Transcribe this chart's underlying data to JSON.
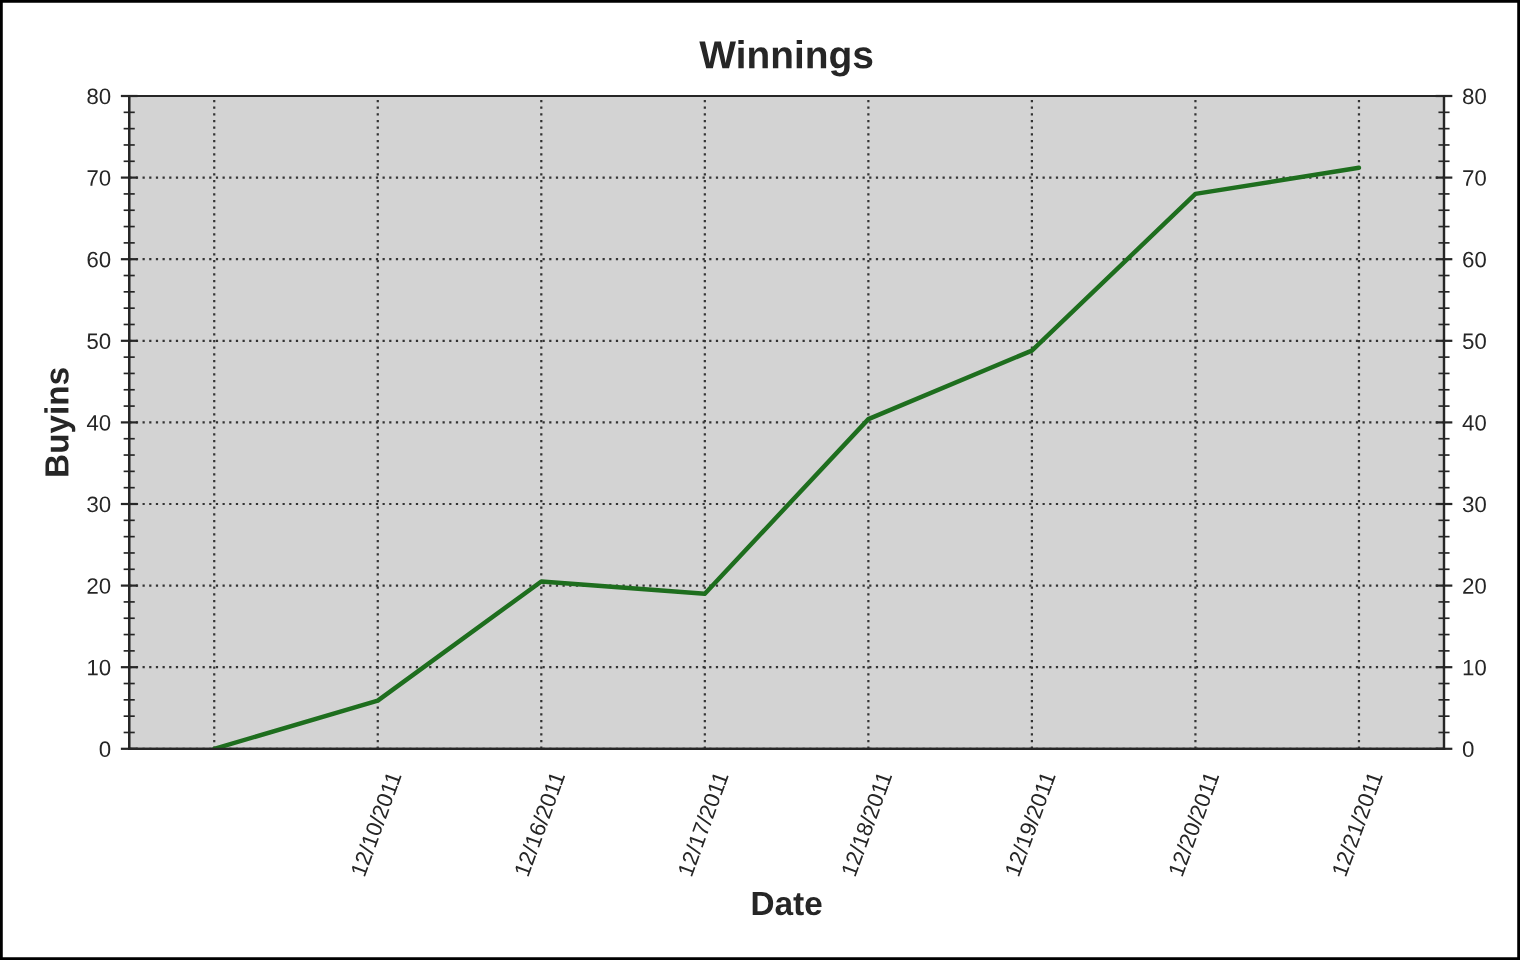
{
  "chart_data": {
    "type": "line",
    "title": "Winnings",
    "xlabel": "Date",
    "ylabel": "Buyins",
    "categories": [
      null,
      "12/10/2011",
      "12/16/2011",
      "12/17/2011",
      "12/18/2011",
      "12/19/2011",
      "12/20/2011",
      "12/21/2011"
    ],
    "series": [
      {
        "color": "#1e6e1e",
        "values": [
          0,
          5.9,
          20.5,
          19.0,
          40.4,
          48.8,
          68.0,
          71.2
        ]
      }
    ],
    "ylim": [
      0,
      80
    ],
    "yticks": [
      0,
      10,
      20,
      30,
      40,
      50,
      60,
      70,
      80
    ],
    "y2lim": [
      0,
      80
    ],
    "y2ticks": [
      0,
      10,
      20,
      30,
      40,
      50,
      60,
      70,
      80
    ],
    "grid": true,
    "legend": false,
    "marker": "none",
    "line_style": "solid"
  }
}
